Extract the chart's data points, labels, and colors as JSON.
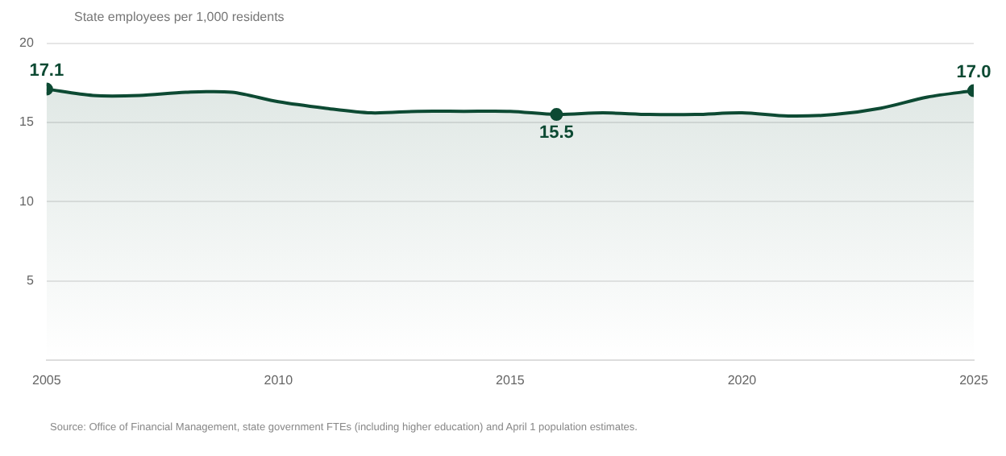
{
  "chart_data": {
    "type": "area",
    "subtitle": "State employees per 1,000 residents",
    "x": [
      2005,
      2006,
      2007,
      2008,
      2009,
      2010,
      2011,
      2012,
      2013,
      2014,
      2015,
      2016,
      2017,
      2018,
      2019,
      2020,
      2021,
      2022,
      2023,
      2024,
      2025
    ],
    "series": [
      {
        "color": "#0d4a33",
        "values": [
          17.1,
          16.7,
          16.7,
          16.9,
          16.9,
          16.3,
          15.9,
          15.6,
          15.7,
          15.7,
          15.7,
          15.5,
          15.6,
          15.5,
          15.5,
          15.6,
          15.4,
          15.5,
          15.9,
          16.6,
          17.0
        ],
        "value_labels": [
          "17.1",
          null,
          null,
          null,
          null,
          null,
          null,
          null,
          null,
          null,
          null,
          "15.5",
          null,
          null,
          null,
          null,
          null,
          null,
          null,
          null,
          "17.0"
        ]
      }
    ],
    "xlim": [
      2005,
      2025
    ],
    "xticks": [
      2005,
      2010,
      2015,
      2020,
      2025
    ],
    "ylim": [
      0,
      20
    ],
    "yticks": [
      {
        "value": 0,
        "label": null
      },
      5,
      10,
      15,
      20
    ],
    "grid": "y",
    "legend": false,
    "annotations": [
      "Source: Office of Financial Management, state government FTEs (including higher education) and April 1 population estimates."
    ]
  }
}
